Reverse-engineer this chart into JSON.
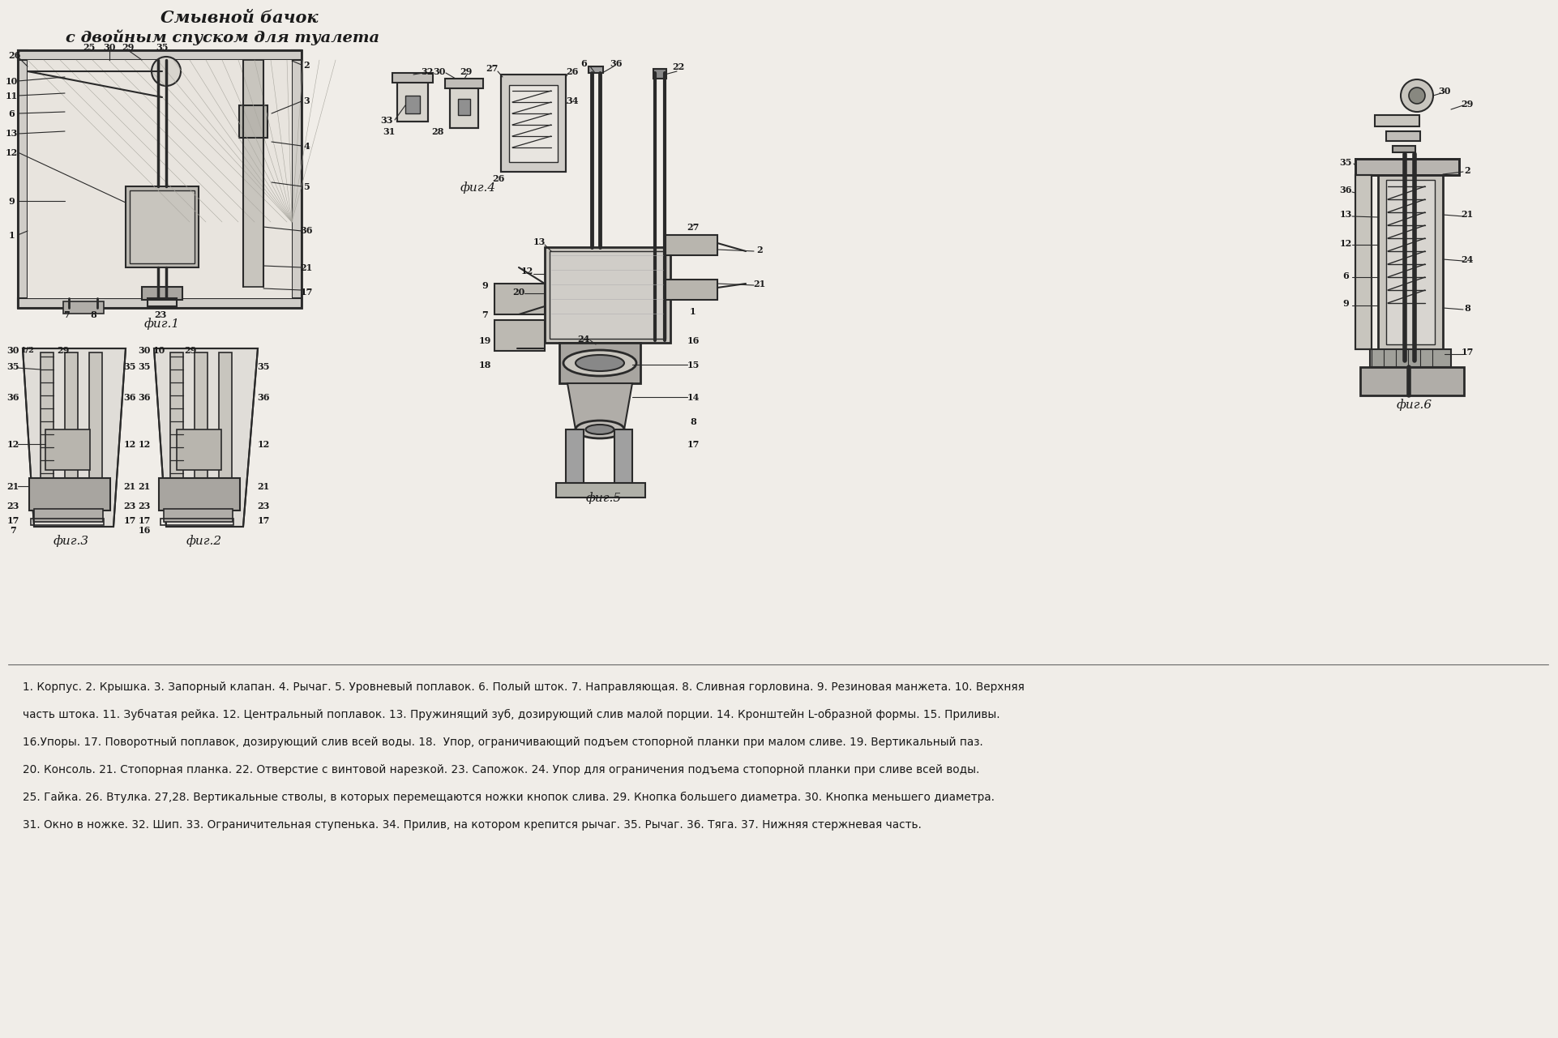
{
  "title_line1": "Смывной бачок",
  "title_line2": "с двойным спуском для туалета",
  "background_color": "#f0ede8",
  "line_color": "#2a2a2a",
  "fig_width": 19.22,
  "fig_height": 12.81,
  "description_text": "1. Корпус. 2. Крышка. 3. Запорный клапан. 4. Рычаг. 5. Уровневый поплавок. 6. Полый шток. 7. Направляющая. 8. Сливная горловина. 9. Резиновая манжета. 10. Верхняя\nчасть штока. 11. Зубчатая рейка. 12. Центральный поплавок. 13. Пружинящий зуб, дозирующий слив малой порции. 14. Кронштейн L-образной формы. 15. Приливы.\n16.Упоры. 17. Поворотный поплавок, дозирующий слив всей воды. 18.  Упор, ограничивающий подъем стопорной планки при малом сливе. 19. Вертикальный паз.\n20. Консоль. 21. Стопорная планка. 22. Отверстие с винтовой нарезкой. 23. Сапожок. 24. Упор для ограничения подъема стопорной планки при сливе всей воды.\n25. Гайка. 26. Втулка. 27,28. Вертикальные стволы, в которых перемещаются ножки кнопок слива. 29. Кнопка большего диаметра. 30. Кнопка меньшего диаметра.\n31. Окно в ножке. 32. Шип. 33. Ограничительная ступенька. 34. Прилив, на котором крепится рычаг. 35. Рычаг. 36. Тяга. 37. Нижняя стержневая часть.",
  "fig1_label": "фиг.1",
  "fig2_label": "фиг.2",
  "fig3_label": "фиг.3",
  "fig4_label": "фиг.4",
  "fig5_label": "фиг.5",
  "fig6_label": "фиг.6"
}
